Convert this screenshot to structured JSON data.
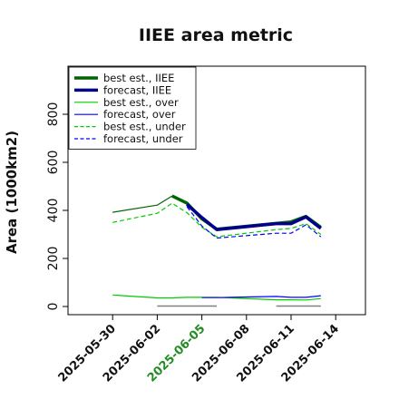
{
  "chart_data": {
    "type": "line",
    "title": "IIEE area metric",
    "xlabel": "",
    "ylabel": "Area (1000km2)",
    "x_ticks": [
      "2025-05-30",
      "2025-06-02",
      "2025-06-05",
      "2025-06-08",
      "2025-06-11",
      "2025-06-14"
    ],
    "highlight_tick": "2025-06-05",
    "highlight_color": "#228B22",
    "ylim": [
      0,
      1000
    ],
    "y_ticks": [
      0,
      200,
      400,
      600,
      800
    ],
    "xlim": [
      "2025-05-27",
      "2025-06-16"
    ],
    "grid": false,
    "legend_position": "top-left",
    "series": [
      {
        "name": "best est., IIEE",
        "color": "#006400",
        "dash": "solid",
        "width": 3.5,
        "points": [
          [
            "2025-06-03",
            460
          ],
          [
            "2025-06-04",
            430
          ],
          [
            "2025-06-05",
            365
          ],
          [
            "2025-06-06",
            322
          ],
          [
            "2025-06-11",
            352
          ],
          [
            "2025-06-12",
            375
          ],
          [
            "2025-06-13",
            330
          ]
        ]
      },
      {
        "name": "forecast, IIEE",
        "color": "#00008B",
        "dash": "solid",
        "width": 3.5,
        "points": [
          [
            "2025-06-04",
            425
          ],
          [
            "2025-06-05",
            370
          ],
          [
            "2025-06-06",
            320
          ],
          [
            "2025-06-10",
            345
          ],
          [
            "2025-06-11",
            345
          ],
          [
            "2025-06-12",
            373
          ],
          [
            "2025-06-13",
            325
          ]
        ]
      },
      {
        "name": "best est., over",
        "color": "#00CC00",
        "dash": "solid",
        "width": 1.2,
        "points": [
          [
            "2025-05-30",
            48
          ],
          [
            "2025-06-02",
            36
          ],
          [
            "2025-06-03",
            36
          ],
          [
            "2025-06-04",
            38
          ],
          [
            "2025-06-05",
            38
          ],
          [
            "2025-06-06",
            38
          ],
          [
            "2025-06-10",
            28
          ],
          [
            "2025-06-11",
            28
          ],
          [
            "2025-06-12",
            27
          ],
          [
            "2025-06-13",
            33
          ]
        ]
      },
      {
        "name": "forecast, over",
        "color": "#0000FF",
        "dash": "solid",
        "width": 1.2,
        "points": [
          [
            "2025-06-05",
            37
          ],
          [
            "2025-06-06",
            37
          ],
          [
            "2025-06-10",
            42
          ],
          [
            "2025-06-11",
            38
          ],
          [
            "2025-06-12",
            38
          ],
          [
            "2025-06-13",
            45
          ]
        ]
      },
      {
        "name": "best est., under",
        "color": "#00CC00",
        "dash": "dashed",
        "width": 1.2,
        "points": [
          [
            "2025-05-30",
            350
          ],
          [
            "2025-06-02",
            388
          ],
          [
            "2025-06-03",
            430
          ],
          [
            "2025-06-04",
            390
          ],
          [
            "2025-06-05",
            330
          ],
          [
            "2025-06-06",
            290
          ],
          [
            "2025-06-10",
            320
          ],
          [
            "2025-06-11",
            325
          ],
          [
            "2025-06-12",
            345
          ],
          [
            "2025-06-13",
            300
          ]
        ]
      },
      {
        "name": "forecast, under",
        "color": "#0000FF",
        "dash": "dashed",
        "width": 1.2,
        "points": [
          [
            "2025-06-04",
            415
          ],
          [
            "2025-06-05",
            335
          ],
          [
            "2025-06-06",
            285
          ],
          [
            "2025-06-10",
            305
          ],
          [
            "2025-06-11",
            305
          ],
          [
            "2025-06-12",
            340
          ],
          [
            "2025-06-13",
            290
          ]
        ]
      },
      {
        "color": "#006400",
        "dash": "solid",
        "width": 1.2,
        "points": [
          [
            "2025-05-30",
            392
          ],
          [
            "2025-06-02",
            422
          ],
          [
            "2025-06-03",
            460
          ]
        ]
      },
      {
        "color": "#808080",
        "dash": "solid",
        "width": 1.6,
        "points": [
          [
            "2025-06-02",
            2
          ],
          [
            "2025-06-06",
            2
          ]
        ]
      },
      {
        "color": "#808080",
        "dash": "solid",
        "width": 1.6,
        "points": [
          [
            "2025-06-10",
            2
          ],
          [
            "2025-06-13",
            2
          ]
        ]
      }
    ]
  }
}
